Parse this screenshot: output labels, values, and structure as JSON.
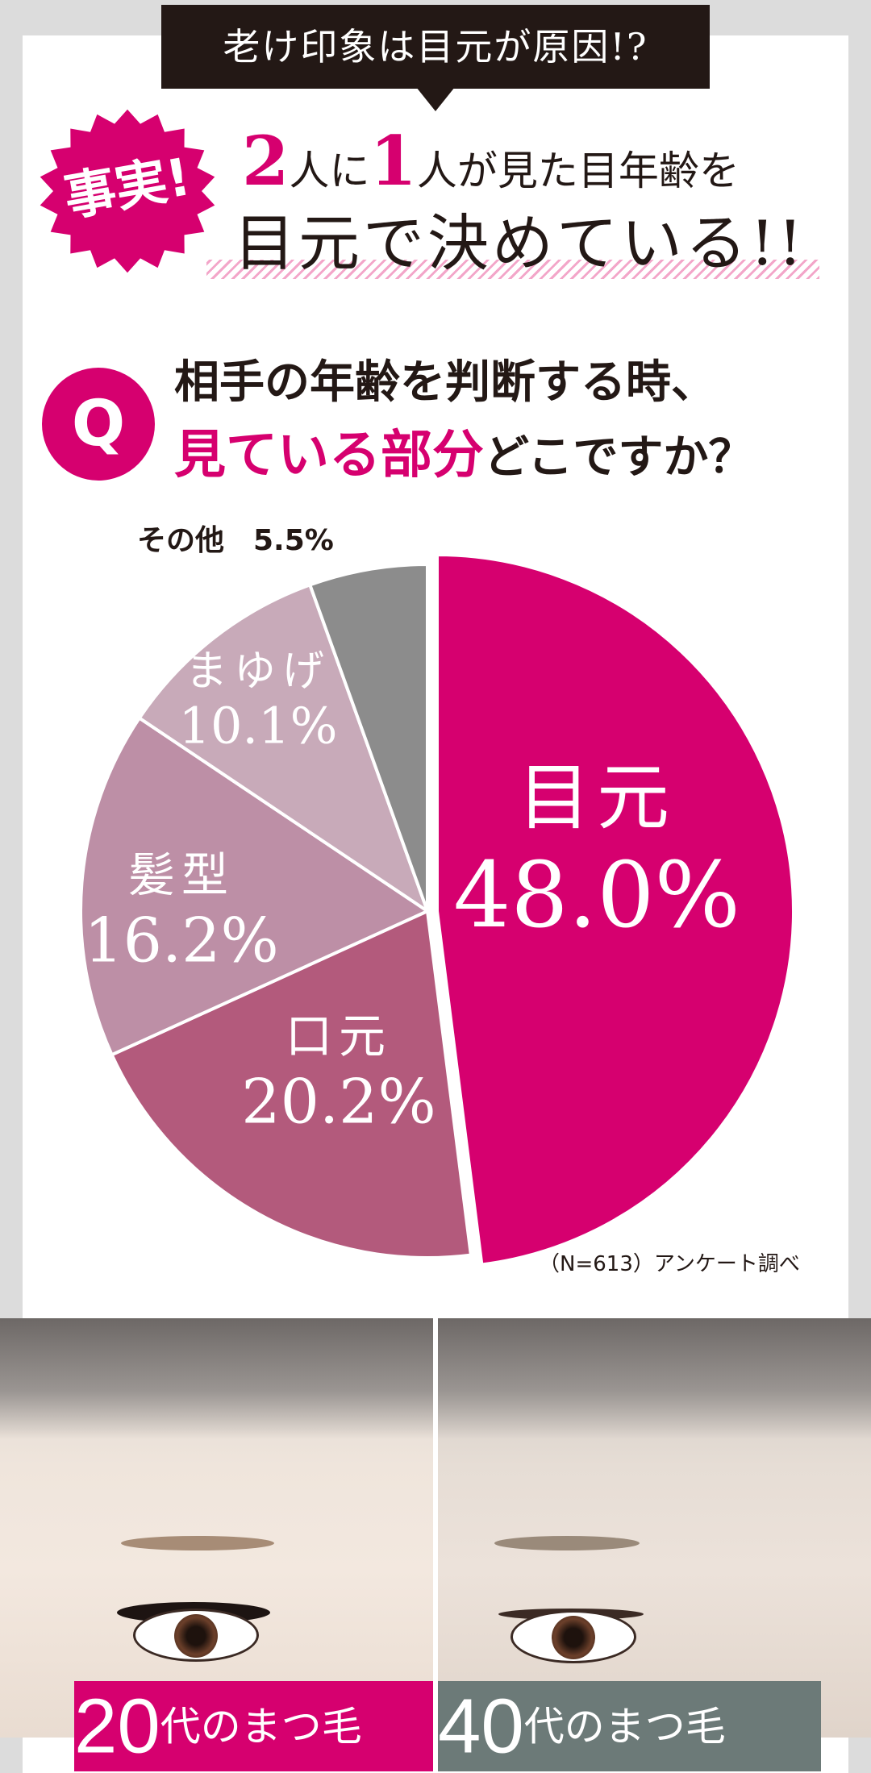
{
  "banner": {
    "text": "老け印象は目元が原因!?"
  },
  "burst": {
    "text": "事実!"
  },
  "headline": {
    "line1_n1": "2",
    "line1_a": "人に",
    "line1_n2": "1",
    "line1_b": "人",
    "line1_c": "が見た目年齢を",
    "line2": "目元で決めている!!"
  },
  "question": {
    "badge": "Q",
    "line1": "相手の年齢を判断する時、",
    "line2_highlight": "見ている部分",
    "line2_rest": "どこですか？"
  },
  "chart_data": {
    "type": "pie",
    "slices": [
      {
        "label": "目元",
        "value": 48.0,
        "display": "48.0%",
        "color": "#d6006f"
      },
      {
        "label": "口元",
        "value": 20.2,
        "display": "20.2%",
        "color": "#b35a7c"
      },
      {
        "label": "髪型",
        "value": 16.2,
        "display": "16.2%",
        "color": "#bd8fa6"
      },
      {
        "label": "まゆげ",
        "value": 10.1,
        "display": "10.1%",
        "color": "#c8aab9"
      },
      {
        "label": "その他",
        "value": 5.5,
        "display": "5.5%",
        "color": "#8c8c8c"
      }
    ]
  },
  "source_note": "（N=613）アンケート調べ",
  "photos": [
    {
      "age": "20",
      "suffix": "代のまつ毛",
      "color": "#d6006f"
    },
    {
      "age": "40",
      "suffix": "代のまつ毛",
      "color": "#6c7a78"
    }
  ]
}
